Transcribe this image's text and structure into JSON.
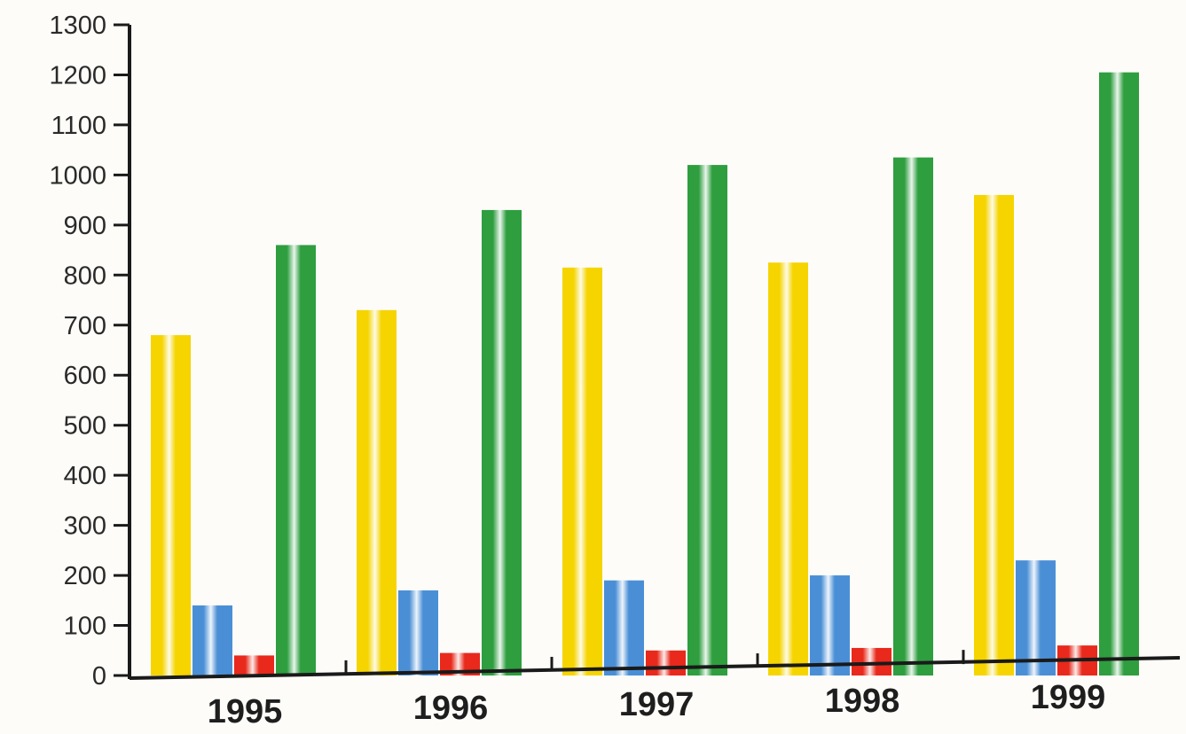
{
  "chart_data": {
    "type": "bar",
    "title": "",
    "xlabel": "",
    "ylabel": "",
    "categories": [
      "1995",
      "1996",
      "1997",
      "1998",
      "1999"
    ],
    "series": [
      {
        "values": [
          680,
          730,
          815,
          825,
          960
        ],
        "color": "#f5d400"
      },
      {
        "values": [
          140,
          170,
          190,
          200,
          230
        ],
        "color": "#4a8fd6"
      },
      {
        "values": [
          40,
          45,
          50,
          55,
          60
        ],
        "color": "#e8291c"
      },
      {
        "values": [
          860,
          930,
          1020,
          1035,
          1205
        ],
        "color": "#2e9e3f"
      }
    ],
    "ylim": [
      0,
      1300
    ],
    "yticks": [
      0,
      100,
      200,
      300,
      400,
      500,
      600,
      700,
      800,
      900,
      1000,
      1100,
      1200,
      1300
    ],
    "grid": false,
    "legend": "none"
  }
}
